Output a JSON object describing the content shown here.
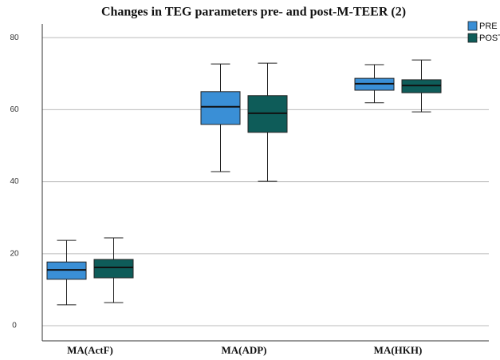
{
  "chart_data": {
    "type": "box",
    "title": "Changes in TEG parameters pre- and post-M-TEER (2)",
    "categories": [
      "MA(ActF)",
      "MA(ADP)",
      "MA(HKH)"
    ],
    "series": [
      {
        "name": "PRE",
        "color": "#3a8fd6",
        "min": [
          5.8,
          42.8,
          61.9
        ],
        "q1": [
          12.9,
          55.9,
          65.4
        ],
        "median": [
          15.5,
          60.8,
          67.2
        ],
        "q3": [
          17.7,
          65.0,
          68.7
        ],
        "max": [
          23.7,
          72.7,
          72.5
        ]
      },
      {
        "name": "POST",
        "color": "#0e5c59",
        "min": [
          6.4,
          40.1,
          59.4
        ],
        "q1": [
          13.3,
          53.7,
          64.7
        ],
        "median": [
          16.2,
          59.0,
          66.7
        ],
        "q3": [
          18.4,
          63.9,
          68.3
        ],
        "max": [
          24.4,
          72.9,
          73.8
        ]
      }
    ],
    "ylim": [
      -4.2,
      83.8
    ],
    "yticks": [
      0,
      20,
      40,
      60,
      80
    ],
    "grid": true,
    "legend": "top-right"
  }
}
